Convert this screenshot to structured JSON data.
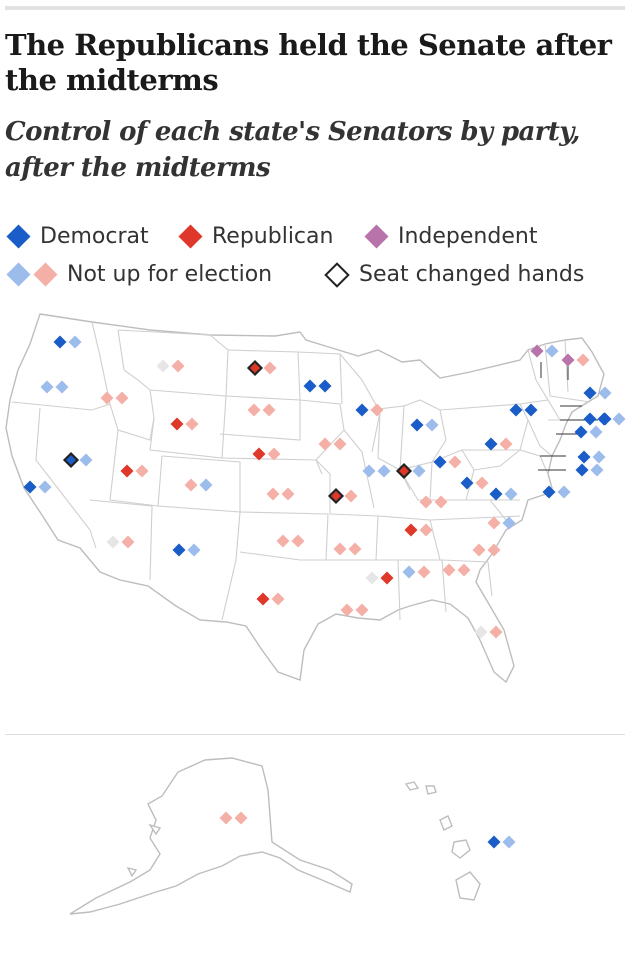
{
  "title": "The Republicans held the Senate after the midterms",
  "subtitle": "Control of each state's Senators by party, after the midterms",
  "legend": {
    "democrat": "Democrat",
    "republican": "Republican",
    "independent": "Independent",
    "not_up": "Not up for election",
    "changed": "Seat changed hands"
  },
  "colors": {
    "democrat": "#1a5cc8",
    "republican": "#e0372b",
    "independent": "#b773aa",
    "democrat_not_up": "#9cbcec",
    "republican_not_up": "#f4b0a6",
    "no_election": "#e6e6e6",
    "changed_outline": "#222222"
  },
  "states": [
    {
      "state": "Washington",
      "seats": [
        "D",
        "d"
      ]
    },
    {
      "state": "Oregon",
      "seats": [
        "d",
        "d"
      ]
    },
    {
      "state": "California",
      "seats": [
        "D",
        "d"
      ]
    },
    {
      "state": "Nevada",
      "seats": [
        "D*",
        "d"
      ]
    },
    {
      "state": "Idaho",
      "seats": [
        "r",
        "r"
      ]
    },
    {
      "state": "Montana",
      "seats": [
        "n",
        "r"
      ]
    },
    {
      "state": "Wyoming",
      "seats": [
        "R",
        "r"
      ]
    },
    {
      "state": "Utah",
      "seats": [
        "R",
        "r"
      ]
    },
    {
      "state": "Arizona",
      "seats": [
        "n",
        "r"
      ]
    },
    {
      "state": "Colorado",
      "seats": [
        "r",
        "d"
      ]
    },
    {
      "state": "New Mexico",
      "seats": [
        "D",
        "d"
      ]
    },
    {
      "state": "North Dakota",
      "seats": [
        "R*",
        "r"
      ]
    },
    {
      "state": "South Dakota",
      "seats": [
        "r",
        "r"
      ]
    },
    {
      "state": "Nebraska",
      "seats": [
        "R",
        "r"
      ]
    },
    {
      "state": "Kansas",
      "seats": [
        "r",
        "r"
      ]
    },
    {
      "state": "Oklahoma",
      "seats": [
        "r",
        "r"
      ]
    },
    {
      "state": "Texas",
      "seats": [
        "R",
        "r"
      ]
    },
    {
      "state": "Minnesota",
      "seats": [
        "D",
        "D"
      ]
    },
    {
      "state": "Iowa",
      "seats": [
        "r",
        "r"
      ]
    },
    {
      "state": "Missouri",
      "seats": [
        "R*",
        "r"
      ]
    },
    {
      "state": "Arkansas",
      "seats": [
        "r",
        "r"
      ]
    },
    {
      "state": "Louisiana",
      "seats": [
        "r",
        "r"
      ]
    },
    {
      "state": "Wisconsin",
      "seats": [
        "D",
        "r"
      ]
    },
    {
      "state": "Illinois",
      "seats": [
        "d",
        "d"
      ]
    },
    {
      "state": "Michigan",
      "seats": [
        "D",
        "d"
      ]
    },
    {
      "state": "Indiana",
      "seats": [
        "R*",
        "d"
      ]
    },
    {
      "state": "Ohio",
      "seats": [
        "D",
        "r"
      ]
    },
    {
      "state": "Kentucky",
      "seats": [
        "r",
        "r"
      ]
    },
    {
      "state": "Tennessee",
      "seats": [
        "R",
        "r"
      ]
    },
    {
      "state": "Mississippi",
      "seats": [
        "n",
        "R"
      ]
    },
    {
      "state": "Alabama",
      "seats": [
        "d",
        "r"
      ]
    },
    {
      "state": "Georgia",
      "seats": [
        "r",
        "r"
      ]
    },
    {
      "state": "Florida",
      "seats": [
        "n",
        "r"
      ]
    },
    {
      "state": "South Carolina",
      "seats": [
        "r",
        "r"
      ]
    },
    {
      "state": "North Carolina",
      "seats": [
        "r",
        "d"
      ]
    },
    {
      "state": "Virginia",
      "seats": [
        "D",
        "d"
      ]
    },
    {
      "state": "West Virginia",
      "seats": [
        "D",
        "r"
      ]
    },
    {
      "state": "Pennsylvania",
      "seats": [
        "D",
        "r"
      ]
    },
    {
      "state": "New York",
      "seats": [
        "D",
        "D"
      ]
    },
    {
      "state": "Vermont",
      "seats": [
        "I",
        "d"
      ]
    },
    {
      "state": "New Hampshire",
      "seats": [
        "I",
        "r"
      ]
    },
    {
      "state": "Maine",
      "seats": [
        "D",
        "d"
      ]
    },
    {
      "state": "Massachusetts",
      "seats": [
        "D",
        "D"
      ]
    },
    {
      "state": "Rhode Island",
      "seats": [
        "D",
        "d"
      ]
    },
    {
      "state": "Connecticut",
      "seats": [
        "D",
        "d"
      ]
    },
    {
      "state": "New Jersey",
      "seats": [
        "D",
        "d"
      ]
    },
    {
      "state": "Delaware",
      "seats": [
        "D",
        "d"
      ]
    },
    {
      "state": "Maryland",
      "seats": [
        "D",
        "d"
      ]
    },
    {
      "state": "Alaska",
      "seats": [
        "r",
        "r"
      ]
    },
    {
      "state": "Hawaii",
      "seats": [
        "D",
        "d"
      ]
    }
  ]
}
